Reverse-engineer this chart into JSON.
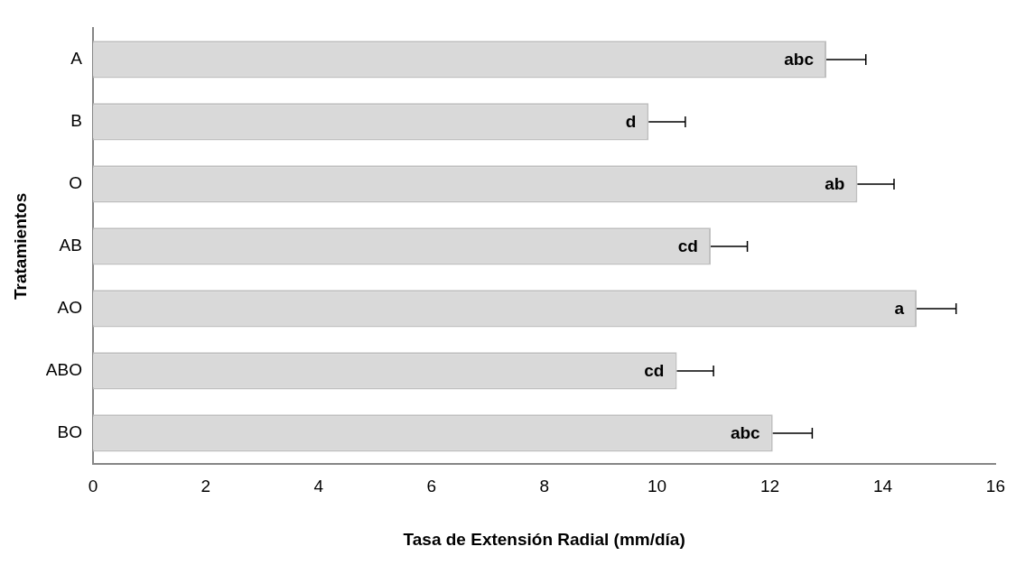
{
  "chart_data": {
    "type": "bar",
    "orientation": "horizontal",
    "xlabel": "Tasa de Extensión Radial (mm/día)",
    "ylabel": "Tratamientos",
    "categories": [
      "A",
      "B",
      "O",
      "AB",
      "AO",
      "ABO",
      "BO"
    ],
    "values": [
      13.0,
      9.85,
      13.55,
      10.95,
      14.6,
      10.35,
      12.05
    ],
    "errors": [
      [
        13.0,
        13.7
      ],
      [
        9.85,
        10.5
      ],
      [
        13.55,
        14.2
      ],
      [
        10.95,
        11.6
      ],
      [
        14.6,
        15.3
      ],
      [
        10.35,
        11.0
      ],
      [
        12.05,
        12.75
      ]
    ],
    "color": "#d9d9d9",
    "xlim": [
      0,
      16
    ],
    "xticks": [
      0,
      2,
      4,
      6,
      8,
      10,
      12,
      14,
      16
    ],
    "grid": false,
    "legend": false,
    "annotations": [
      {
        "text": "abc",
        "x": 13.0,
        "y": "A"
      },
      {
        "text": "d",
        "x": 9.85,
        "y": "B"
      },
      {
        "text": "ab",
        "x": 13.55,
        "y": "O"
      },
      {
        "text": "cd",
        "x": 10.95,
        "y": "AB"
      },
      {
        "text": "a",
        "x": 14.6,
        "y": "AO"
      },
      {
        "text": "cd",
        "x": 10.35,
        "y": "ABO"
      },
      {
        "text": "abc",
        "x": 12.05,
        "y": "BO"
      }
    ]
  }
}
